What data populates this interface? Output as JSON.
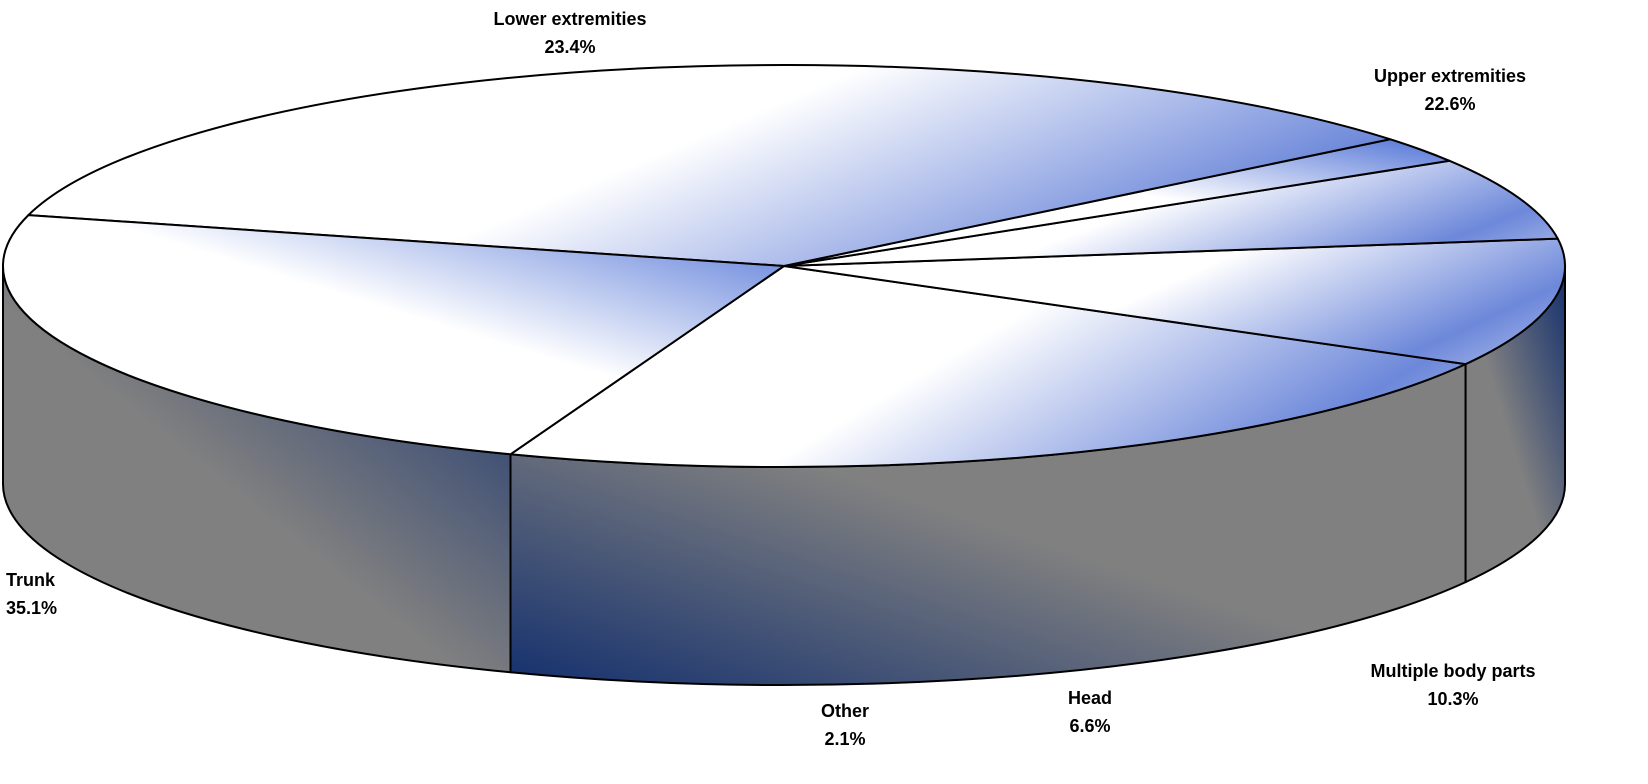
{
  "chart_data": {
    "type": "pie",
    "style": "3d-exploded-none",
    "colors": {
      "top_light": "#ffffff",
      "top_dark": "#4f72d6",
      "side_gray": "#808080",
      "side_dark": "#14306e",
      "outline": "#000000"
    },
    "slices": [
      {
        "key": "upper",
        "label": "Upper extremities",
        "value": 22.6,
        "value_label": "22.6%"
      },
      {
        "key": "multiple",
        "label": "Multiple body parts",
        "value": 10.3,
        "value_label": "10.3%"
      },
      {
        "key": "head",
        "label": "Head",
        "value": 6.6,
        "value_label": "6.6%"
      },
      {
        "key": "other",
        "label": "Other",
        "value": 2.1,
        "value_label": "2.1%"
      },
      {
        "key": "trunk",
        "label": "Trunk",
        "value": 35.1,
        "value_label": "35.1%"
      },
      {
        "key": "lower",
        "label": "Lower extremities",
        "value": 23.4,
        "value_label": "23.4%"
      }
    ]
  }
}
